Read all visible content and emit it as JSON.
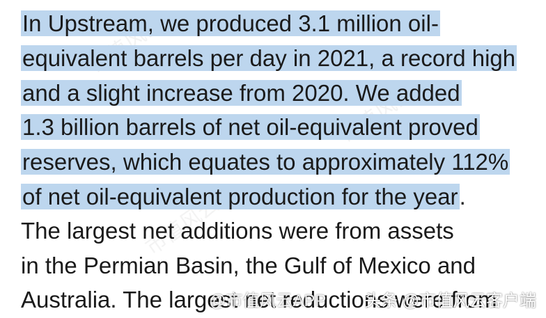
{
  "document": {
    "lines": [
      {
        "text": "In Upstream, we produced 3.1 million oil-",
        "highlighted": true
      },
      {
        "text": "equivalent barrels per day in 2021, a record high",
        "highlighted": true
      },
      {
        "text": "and a slight increase from 2020. We added",
        "highlighted": true
      },
      {
        "text": "1.3 billion barrels of net oil-equivalent proved",
        "highlighted": true
      },
      {
        "text": "reserves, which equates to approximately 112%",
        "highlighted": true
      },
      {
        "text": "of net oil-equivalent production for the year",
        "highlighted": true,
        "trailing": "."
      },
      {
        "text": "The largest net additions were from assets",
        "highlighted": false
      },
      {
        "text": "in the Permian Basin, the Gulf of Mexico and",
        "highlighted": false
      },
      {
        "text": "Australia. The largest net reductions were from",
        "highlighted": false
      }
    ]
  },
  "overlay": {
    "center_watermark": "@市值风云APP",
    "corner_watermark": "头条 @市值风云客户端"
  },
  "colors": {
    "highlight": "#bdd6ee",
    "text": "#1a1a1a"
  }
}
